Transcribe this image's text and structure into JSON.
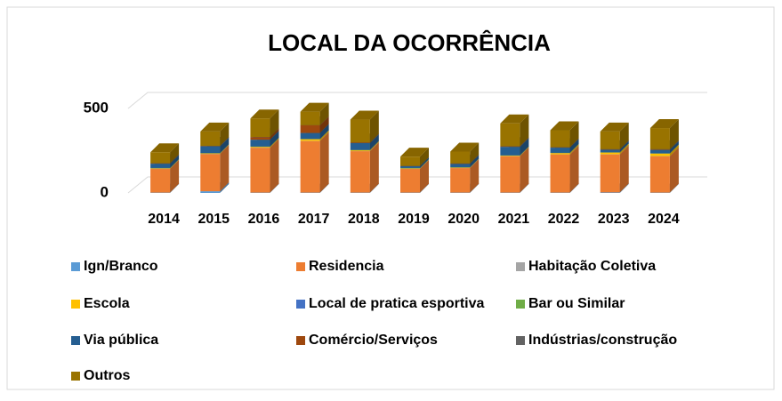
{
  "chart_data": {
    "type": "bar3d_stacked",
    "title": "LOCAL DA OCORRÊNCIA",
    "categories": [
      "2014",
      "2015",
      "2016",
      "2017",
      "2018",
      "2019",
      "2020",
      "2021",
      "2022",
      "2023",
      "2024"
    ],
    "ylim": [
      0,
      500
    ],
    "yticks": [
      0,
      500
    ],
    "grid": true,
    "series": [
      {
        "name": "Ign/Branco",
        "color": "#5b9bd5",
        "values": [
          2,
          10,
          2,
          2,
          2,
          2,
          2,
          2,
          2,
          3,
          2
        ]
      },
      {
        "name": "Residencia",
        "color": "#ed7d31",
        "values": [
          140,
          220,
          265,
          305,
          245,
          140,
          145,
          215,
          225,
          225,
          215
        ]
      },
      {
        "name": "Habitação Coletiva",
        "color": "#a5a5a5",
        "values": [
          1,
          1,
          1,
          1,
          1,
          1,
          1,
          1,
          1,
          1,
          1
        ]
      },
      {
        "name": "Escola",
        "color": "#ffc000",
        "values": [
          3,
          3,
          5,
          10,
          5,
          2,
          2,
          3,
          8,
          10,
          15
        ]
      },
      {
        "name": "Local de pratica esportiva",
        "color": "#4472c4",
        "values": [
          1,
          1,
          1,
          1,
          1,
          1,
          1,
          1,
          1,
          1,
          1
        ]
      },
      {
        "name": "Bar ou Similar",
        "color": "#70ad47",
        "values": [
          1,
          1,
          1,
          1,
          1,
          2,
          1,
          1,
          1,
          1,
          1
        ]
      },
      {
        "name": "Via pública",
        "color": "#255e91",
        "values": [
          25,
          40,
          40,
          35,
          40,
          10,
          20,
          50,
          30,
          15,
          20
        ]
      },
      {
        "name": "Comércio/Serviços",
        "color": "#9e480e",
        "values": [
          2,
          2,
          15,
          45,
          3,
          1,
          2,
          3,
          2,
          2,
          3
        ]
      },
      {
        "name": "Indústrias/construção",
        "color": "#636363",
        "values": [
          1,
          1,
          1,
          1,
          1,
          1,
          1,
          1,
          1,
          1,
          1
        ]
      },
      {
        "name": "Outros",
        "color": "#997300",
        "values": [
          65,
          85,
          110,
          80,
          135,
          55,
          70,
          135,
          100,
          105,
          125
        ]
      }
    ]
  }
}
